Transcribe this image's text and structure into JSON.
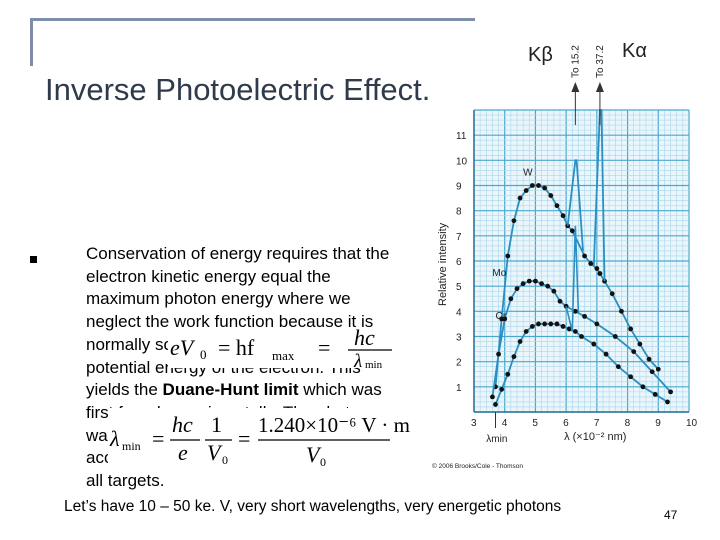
{
  "slide": {
    "title": "Inverse Photoelectric Effect.",
    "body_1": "Conservation of energy requires that the electron kinetic energy equal the maximum photon energy where we neglect the work function because it is normally so small compared to the potential energy of the electron. This yields the ",
    "body_bold": "Duane-Hunt limit",
    "body_2": " which was first found experimentally. The photon wavelength depends only on the accelerating voltage and is the same for all targets.",
    "footer": "Let’s have 10 – 50 ke. V, very short wavelengths, very energetic photons",
    "page_number": "47",
    "eq1_lhs": "eV",
    "eq1_mid": "= hf",
    "eq1_sub": "max",
    "eq1_num": "hc",
    "eq1_den": "λ",
    "eq1_den_sub": "min",
    "eq2_lhs": "λ",
    "eq2_lhs_sub": "min",
    "eq2_num1": "hc",
    "eq2_frac1": "1",
    "eq2_den1": "e",
    "eq2_den_v": "V",
    "eq2_num2": "1.240×10⁻⁶ V · m",
    "eq2_den2": "V"
  },
  "figure": {
    "k_beta": "Kβ",
    "k_alpha": "Kα",
    "to_152": "To 15.2",
    "to_372": "To 37.2",
    "w_label": "W",
    "mo_label": "Mo",
    "cr_label": "Cr",
    "credit": "© 2006 Brooks/Cole - Thomson",
    "lambda_min": "λmin"
  },
  "chart_data": {
    "type": "line",
    "title": "",
    "xlabel": "λ (×10⁻² nm)",
    "ylabel": "Relative intensity",
    "xlim": [
      3,
      10
    ],
    "ylim": [
      0,
      12
    ],
    "x_ticks": [
      3,
      4,
      5,
      6,
      7,
      8,
      9,
      10
    ],
    "y_ticks": [
      1,
      2,
      3,
      4,
      5,
      6,
      7,
      8,
      9,
      10,
      11
    ],
    "grid": true,
    "series": [
      {
        "name": "W",
        "x": [
          3.7,
          3.9,
          4.1,
          4.3,
          4.5,
          4.7,
          4.9,
          5.1,
          5.3,
          5.5,
          5.7,
          5.9,
          6.05,
          6.2,
          6.6,
          6.8,
          7.0,
          7.1,
          7.25,
          7.5,
          7.8,
          8.1,
          8.4,
          8.7,
          9.0
        ],
        "y": [
          1.0,
          3.7,
          6.2,
          7.6,
          8.5,
          8.8,
          9.0,
          9.0,
          8.9,
          8.6,
          8.2,
          7.8,
          7.4,
          7.2,
          6.2,
          5.9,
          5.7,
          5.5,
          5.2,
          4.7,
          4.0,
          3.3,
          2.7,
          2.1,
          1.7
        ]
      },
      {
        "name": "Mo",
        "x": [
          3.6,
          3.8,
          4.0,
          4.2,
          4.4,
          4.6,
          4.8,
          5.0,
          5.2,
          5.4,
          5.6,
          5.8,
          6.0,
          6.3,
          6.6,
          7.0,
          7.6,
          8.2,
          8.8,
          9.4
        ],
        "y": [
          0.6,
          2.3,
          3.7,
          4.5,
          4.9,
          5.1,
          5.2,
          5.2,
          5.1,
          5.0,
          4.8,
          4.4,
          4.2,
          4.0,
          3.8,
          3.5,
          3.0,
          2.4,
          1.6,
          0.8
        ]
      },
      {
        "name": "Cr",
        "x": [
          3.7,
          3.9,
          4.1,
          4.3,
          4.5,
          4.7,
          4.9,
          5.1,
          5.3,
          5.5,
          5.7,
          5.9,
          6.1,
          6.3,
          6.5,
          6.9,
          7.3,
          7.7,
          8.1,
          8.5,
          8.9,
          9.3
        ],
        "y": [
          0.3,
          0.9,
          1.5,
          2.2,
          2.8,
          3.2,
          3.4,
          3.5,
          3.5,
          3.5,
          3.5,
          3.4,
          3.3,
          3.2,
          3.0,
          2.7,
          2.3,
          1.8,
          1.4,
          1.0,
          0.7,
          0.4
        ]
      }
    ],
    "peaks": [
      {
        "label": "Kβ",
        "x": 6.3,
        "y": 10.0
      },
      {
        "label": "Kα",
        "x": 7.1,
        "y": 12.0
      }
    ]
  }
}
